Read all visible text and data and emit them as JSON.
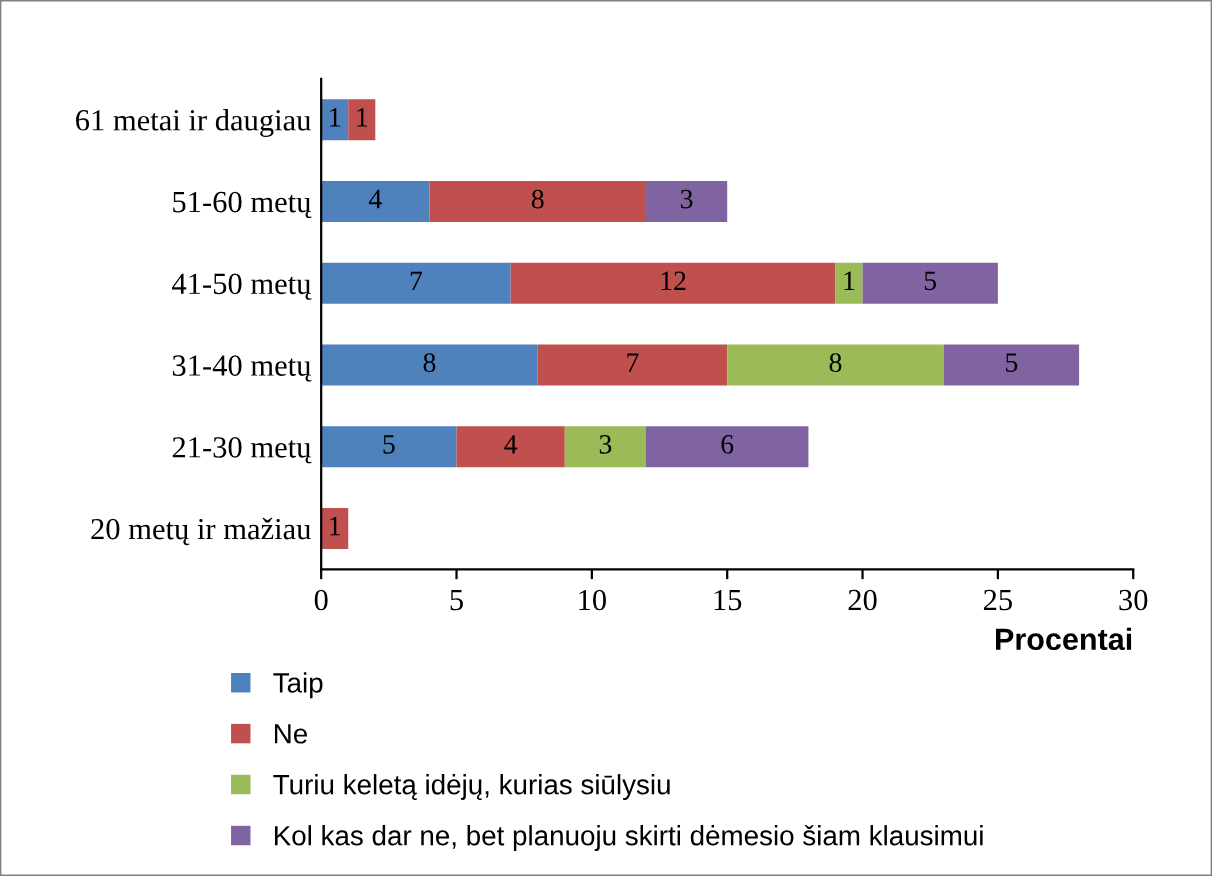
{
  "chart_data": {
    "type": "bar",
    "orientation": "horizontal",
    "stacked": true,
    "categories": [
      "61 metai ir daugiau",
      "51-60 metų",
      "41-50 metų",
      "31-40 metų",
      "21-30 metų",
      "20 metų ir mažiau"
    ],
    "series": [
      {
        "name": "Taip",
        "color": "#4f81bd",
        "values": [
          1,
          4,
          7,
          8,
          5,
          null
        ]
      },
      {
        "name": "Ne",
        "color": "#c0504d",
        "values": [
          1,
          8,
          12,
          7,
          4,
          1
        ]
      },
      {
        "name": "Turiu keletą idėjų, kurias siūlysiu",
        "color": "#9bbb59",
        "values": [
          null,
          null,
          1,
          8,
          3,
          null
        ]
      },
      {
        "name": "Kol kas dar ne, bet planuoju skirti dėmesio šiam klausimui",
        "color": "#8064a2",
        "values": [
          null,
          3,
          5,
          5,
          6,
          null
        ]
      }
    ],
    "xlabel": "Procentai",
    "xlim": [
      0,
      30
    ],
    "xticks": [
      0,
      5,
      10,
      15,
      20,
      25,
      30
    ],
    "data_labels": true,
    "legend": "bottom",
    "grid": false
  }
}
